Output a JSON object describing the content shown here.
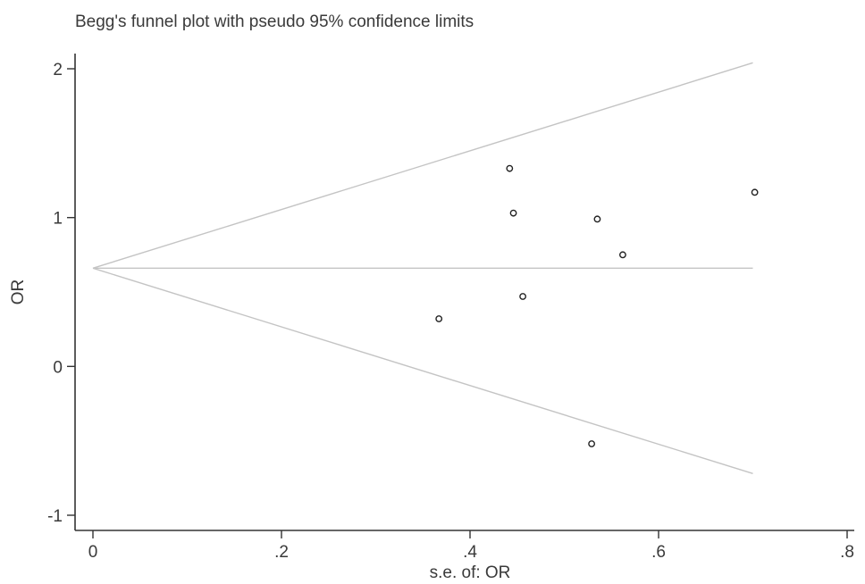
{
  "chart_data": {
    "type": "scatter",
    "title": "Begg's funnel plot with pseudo 95% confidence limits",
    "xlabel": "s.e. of: OR",
    "ylabel": "OR",
    "xlim": [
      0,
      0.8
    ],
    "ylim": [
      -1,
      2
    ],
    "x_ticks": [
      0,
      0.2,
      0.4,
      0.6,
      0.8
    ],
    "x_tick_labels": [
      "0",
      ".2",
      ".4",
      ".6",
      ".8"
    ],
    "y_ticks": [
      -1,
      0,
      1,
      2
    ],
    "y_tick_labels": [
      "-1",
      "0",
      "1",
      "2"
    ],
    "grid": false,
    "pooled_estimate": 0.66,
    "pseudo_ci_limits": {
      "se": [
        0,
        0.7
      ],
      "upper": [
        0.66,
        2.04
      ],
      "lower": [
        0.66,
        -0.72
      ]
    },
    "points": [
      {
        "x": 0.367,
        "y": 0.32
      },
      {
        "x": 0.442,
        "y": 1.33
      },
      {
        "x": 0.446,
        "y": 1.03
      },
      {
        "x": 0.456,
        "y": 0.47
      },
      {
        "x": 0.529,
        "y": -0.52
      },
      {
        "x": 0.535,
        "y": 0.99
      },
      {
        "x": 0.562,
        "y": 0.75
      },
      {
        "x": 0.702,
        "y": 1.17
      }
    ]
  }
}
